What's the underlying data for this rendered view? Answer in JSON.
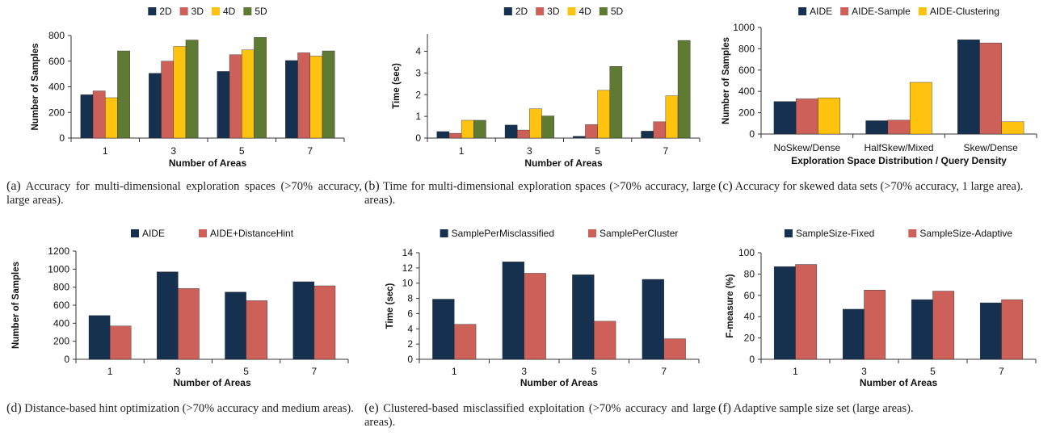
{
  "colors": {
    "navy": "#16304f",
    "salmon": "#cd6159",
    "gold": "#ffc20e",
    "olive": "#5e7a33"
  },
  "panels": [
    {
      "id": "a",
      "caption_label": "(a)",
      "caption_text": "Accuracy for multi-dimensional exploration spaces (>70% accuracy, large areas).",
      "chart_data": {
        "type": "bar",
        "categories": [
          "1",
          "3",
          "5",
          "7"
        ],
        "series": [
          {
            "name": "2D",
            "values": [
              338,
              505,
              520,
              605
            ]
          },
          {
            "name": "3D",
            "values": [
              368,
              600,
              650,
              665
            ]
          },
          {
            "name": "4D",
            "values": [
              315,
              715,
              688,
              640
            ]
          },
          {
            "name": "5D",
            "values": [
              680,
              765,
              785,
              680
            ]
          }
        ],
        "ylim": [
          0,
          800
        ],
        "yticks": [
          "0",
          "200",
          "400",
          "600",
          "800"
        ],
        "xlabel": "Number of Areas",
        "ylabel": "Number of Samples",
        "legend": "top"
      }
    },
    {
      "id": "b",
      "caption_label": "(b)",
      "caption_text": "Time for multi-dimensional exploration spaces (>70% accuracy, large areas).",
      "chart_data": {
        "type": "bar",
        "categories": [
          "1",
          "3",
          "5",
          "7"
        ],
        "series": [
          {
            "name": "2D",
            "values": [
              0.3,
              0.6,
              0.08,
              0.32
            ]
          },
          {
            "name": "3D",
            "values": [
              0.22,
              0.37,
              0.62,
              0.75
            ]
          },
          {
            "name": "4D",
            "values": [
              0.82,
              1.35,
              2.2,
              1.95
            ]
          },
          {
            "name": "5D",
            "values": [
              0.82,
              1.02,
              3.3,
              4.5
            ]
          }
        ],
        "ylim": [
          0,
          4.8
        ],
        "yticks": [
          "0",
          "1",
          "2",
          "3",
          "4"
        ],
        "xlabel": "Number of Areas",
        "ylabel": "Time (sec)",
        "legend": "top"
      }
    },
    {
      "id": "c",
      "caption_label": "(c)",
      "caption_text": "Accuracy for skewed data sets (>70% accuracy, 1 large area).",
      "chart_data": {
        "type": "bar",
        "categories": [
          "NoSkew/Dense",
          "HalfSkew/Mixed",
          "Skew/Dense"
        ],
        "series": [
          {
            "name": "AIDE",
            "values": [
              305,
              125,
              885
            ]
          },
          {
            "name": "AIDE-Sample",
            "values": [
              330,
              130,
              855
            ]
          },
          {
            "name": "AIDE-Clustering",
            "values": [
              340,
              485,
              115
            ]
          }
        ],
        "ylim": [
          0,
          1000
        ],
        "yticks": [
          "0",
          "200",
          "400",
          "600",
          "800",
          "1000"
        ],
        "xlabel": "Exploration Space Distribution / Query Density",
        "ylabel": "Number of Samples",
        "legend": "top"
      }
    },
    {
      "id": "d",
      "caption_label": "(d)",
      "caption_text": "Distance-based hint optimization (>70% accuracy and medium areas).",
      "chart_data": {
        "type": "bar",
        "categories": [
          "1",
          "3",
          "5",
          "7"
        ],
        "series": [
          {
            "name": "AIDE",
            "values": [
              485,
              970,
              745,
              860
            ]
          },
          {
            "name": "AIDE+DistanceHint",
            "values": [
              370,
              785,
              650,
              815
            ]
          }
        ],
        "ylim": [
          0,
          1200
        ],
        "yticks": [
          "0",
          "200",
          "400",
          "600",
          "800",
          "1000",
          "1200"
        ],
        "xlabel": "Number of Areas",
        "ylabel": "Number of Samples",
        "legend": "top"
      }
    },
    {
      "id": "e",
      "caption_label": "(e)",
      "caption_text": "Clustered-based misclassified exploitation (>70% accuracy and large areas).",
      "chart_data": {
        "type": "bar",
        "categories": [
          "1",
          "3",
          "5",
          "7"
        ],
        "series": [
          {
            "name": "SamplePerMisclassified",
            "values": [
              7.9,
              12.8,
              11.1,
              10.5
            ]
          },
          {
            "name": "SamplePerCluster",
            "values": [
              4.6,
              11.3,
              5.0,
              2.7
            ]
          }
        ],
        "ylim": [
          0,
          14
        ],
        "yticks": [
          "0",
          "2",
          "4",
          "6",
          "8",
          "10",
          "12",
          "14"
        ],
        "xlabel": "Number of Areas",
        "ylabel": "Time (sec)",
        "legend": "top"
      }
    },
    {
      "id": "f",
      "caption_label": "(f)",
      "caption_text": "Adaptive sample size set (large areas).",
      "chart_data": {
        "type": "bar",
        "categories": [
          "1",
          "3",
          "5",
          "7"
        ],
        "series": [
          {
            "name": "SampleSize-Fixed",
            "values": [
              87,
              47,
              56,
              53
            ]
          },
          {
            "name": "SampleSize-Adaptive",
            "values": [
              89,
              65,
              64,
              56
            ]
          }
        ],
        "ylim": [
          0,
          100
        ],
        "yticks": [
          "0",
          "20",
          "40",
          "60",
          "80",
          "100"
        ],
        "xlabel": "Number of Areas",
        "ylabel": "F-measure (%)",
        "legend": "top"
      }
    }
  ]
}
